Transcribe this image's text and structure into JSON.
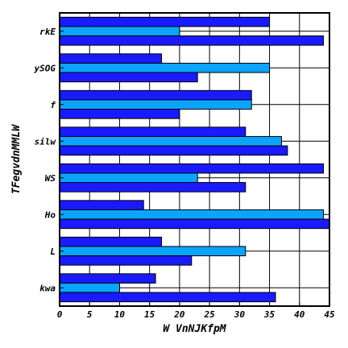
{
  "chart_data": {
    "type": "bar",
    "orientation": "horizontal",
    "categories": [
      "kwa",
      "L",
      "Ho",
      "WS",
      "silw",
      "f",
      "ySOG",
      "rkE"
    ],
    "series": [
      {
        "color": "#1a1aff",
        "values": [
          16,
          17,
          14,
          44,
          31,
          32,
          17,
          35
        ]
      },
      {
        "color": "#0ba4ff",
        "values": [
          10,
          31,
          44,
          23,
          37,
          32,
          35,
          20
        ]
      },
      {
        "color": "#1a1aff",
        "values": [
          36,
          22,
          45,
          31,
          38,
          20,
          23,
          44
        ]
      }
    ],
    "xticks": [
      "0",
      "5",
      "10",
      "15",
      "20",
      "25",
      "30",
      "35",
      "40",
      "45"
    ],
    "xlim": [
      0,
      45
    ],
    "xlabel": "W  VnNJKfpM",
    "ylabel": "TFegvdnMMLW",
    "grid": true,
    "legend": "none"
  }
}
